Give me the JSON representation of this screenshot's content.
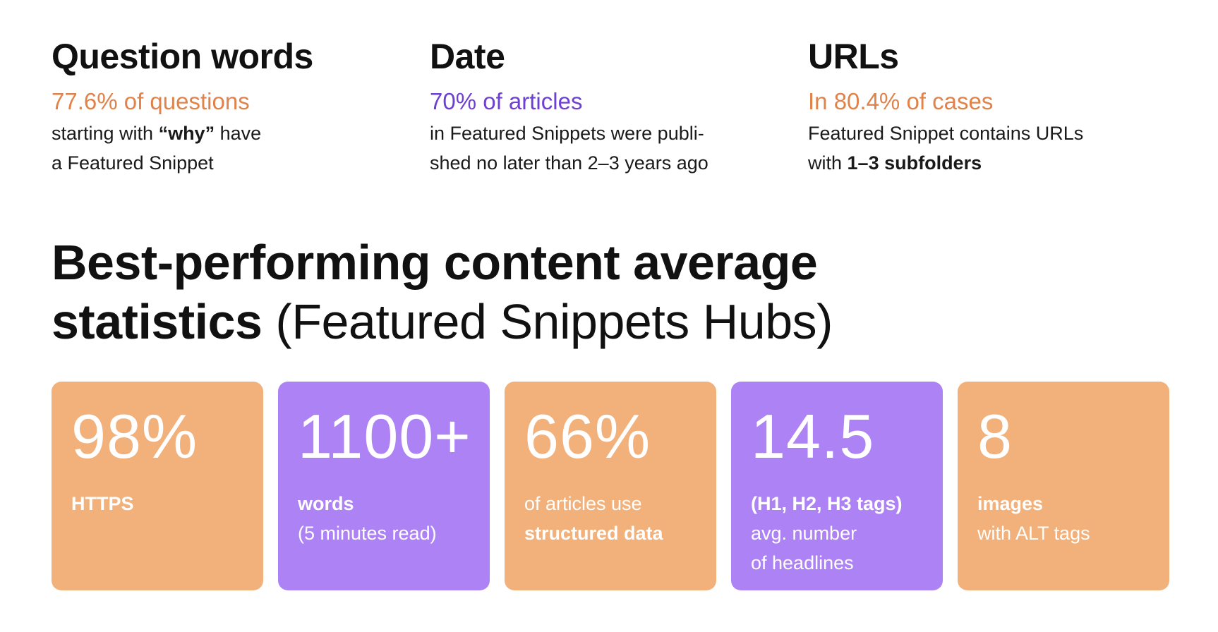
{
  "facts": [
    {
      "title": "Question words",
      "highlight_value": "77.6%",
      "highlight_rest": " of questions",
      "desc_line1_pre": "starting with ",
      "desc_line1_bold": "“why”",
      "desc_line1_post": " have",
      "desc_line2": "a Featured Snippet"
    },
    {
      "title": "Date",
      "highlight_value": "70%",
      "highlight_rest": " of articles",
      "desc_line1": "in Featured Snippets were publi-",
      "desc_line2": "shed no later than 2–3 years ago"
    },
    {
      "title": "URLs",
      "highlight_pre": "In ",
      "highlight_value": "80.4%",
      "highlight_rest": " of cases",
      "desc_line1": "Featured Snippet contains URLs",
      "desc_line2_pre": "with ",
      "desc_line2_bold": "1–3 subfolders"
    }
  ],
  "headline": {
    "bold_line1": "Best-performing content average",
    "bold_line2": "statistics",
    "light_part": " (Featured Snippets Hubs)"
  },
  "cards": [
    {
      "value": "98%",
      "line1": "HTTPS",
      "color": "#f2b07a"
    },
    {
      "value": "1100+",
      "line1": "words",
      "line2": "(5 minutes read)",
      "color": "#ad82f5"
    },
    {
      "value": "66%",
      "line1": "of articles use",
      "line2": "structured data",
      "color": "#f2b07a"
    },
    {
      "value": "14.5",
      "line1": "(H1, H2, H3 tags)",
      "line2": "avg. number",
      "line3": "of headlines",
      "color": "#ad82f5"
    },
    {
      "value": "8",
      "line1": "images",
      "line2": "with ALT tags",
      "color": "#f2b07a"
    }
  ],
  "colors": {
    "accent_orange": "#e0824a",
    "accent_purple": "#6e3fd1",
    "card_orange": "#f2b07a",
    "card_purple": "#ad82f5"
  }
}
